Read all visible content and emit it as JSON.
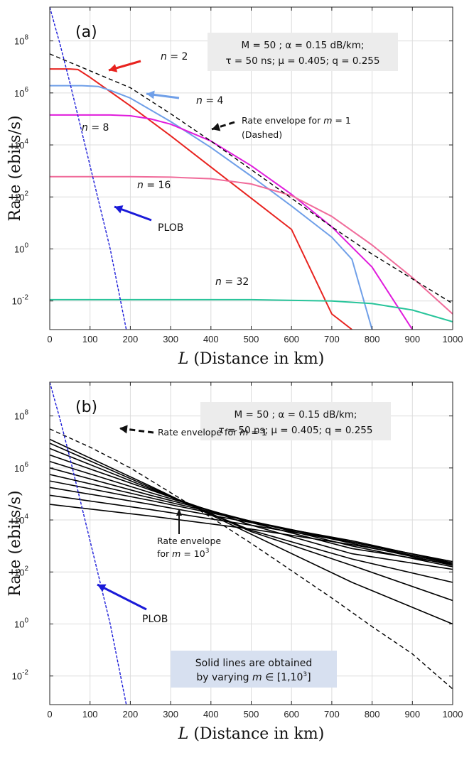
{
  "chart_data": [
    {
      "type": "line",
      "panel_label": "(a)",
      "xlabel": "L (Distance in km)",
      "xlabel_var": "L",
      "xlabel_text": "(Distance in km)",
      "ylabel": "Rate (ebits/s)",
      "xlim": [
        0,
        1000
      ],
      "ylim_log10": [
        -3.1,
        9.3
      ],
      "y_scale": "log",
      "grid": true,
      "x_ticks": [
        "0",
        "100",
        "200",
        "300",
        "400",
        "500",
        "600",
        "700",
        "800",
        "900",
        "1000"
      ],
      "y_ticks": [
        {
          "exp": "-2",
          "v": -2
        },
        {
          "exp": "0",
          "v": 0
        },
        {
          "exp": "2",
          "v": 2
        },
        {
          "exp": "4",
          "v": 4
        },
        {
          "exp": "6",
          "v": 6
        },
        {
          "exp": "8",
          "v": 8
        }
      ],
      "params": [
        "M = 50 ; α = 0.15 dB/km;",
        "τ = 50 ns; μ = 0.405; q = 0.255"
      ],
      "series": [
        {
          "label": "n = 2",
          "color": "#e8231f",
          "style": "solid",
          "x": [
            0,
            50,
            70,
            100,
            150,
            200,
            300,
            400,
            500,
            600,
            700,
            750
          ],
          "log10_y": [
            6.92,
            6.92,
            6.9,
            6.6,
            6.05,
            5.5,
            4.35,
            3.15,
            1.95,
            0.75,
            -2.5,
            -3.1
          ]
        },
        {
          "label": "n = 4",
          "color": "#6f9fe8",
          "style": "solid",
          "x": [
            0,
            80,
            120,
            150,
            200,
            300,
            400,
            500,
            600,
            700,
            750,
            800
          ],
          "log10_y": [
            6.28,
            6.28,
            6.25,
            6.1,
            5.8,
            4.9,
            3.9,
            2.8,
            1.65,
            0.45,
            -0.4,
            -3.1
          ]
        },
        {
          "label": "n = 8",
          "color": "#e01bdc",
          "style": "solid",
          "x": [
            0,
            150,
            200,
            250,
            300,
            400,
            500,
            600,
            700,
            800,
            850,
            900
          ],
          "log10_y": [
            5.15,
            5.15,
            5.12,
            5.0,
            4.8,
            4.15,
            3.2,
            2.1,
            0.85,
            -0.7,
            -1.9,
            -3.1
          ]
        },
        {
          "label": "n = 16",
          "color": "#f06b9a",
          "style": "solid",
          "x": [
            0,
            200,
            300,
            400,
            500,
            600,
            700,
            800,
            900,
            950,
            1000
          ],
          "log10_y": [
            2.78,
            2.78,
            2.76,
            2.7,
            2.5,
            2.05,
            1.25,
            0.15,
            -1.1,
            -1.8,
            -2.5
          ]
        },
        {
          "label": "n = 32",
          "color": "#27c49a",
          "style": "solid",
          "x": [
            0,
            300,
            500,
            700,
            800,
            900,
            1000
          ],
          "log10_y": [
            -1.95,
            -1.95,
            -1.95,
            -2.0,
            -2.1,
            -2.35,
            -2.8
          ]
        },
        {
          "label": "Rate envelope for m = 1 (Dashed)",
          "color": "#000000",
          "style": "dashed",
          "x": [
            0,
            100,
            200,
            300,
            400,
            500,
            600,
            700,
            800,
            900,
            1000
          ],
          "log10_y": [
            7.5,
            6.85,
            6.2,
            5.2,
            4.15,
            3.05,
            1.95,
            0.85,
            -0.2,
            -1.15,
            -2.1
          ]
        },
        {
          "label": "PLOB",
          "color": "#1a1ad8",
          "style": "dashed",
          "x": [
            0,
            25,
            50,
            100,
            150,
            190
          ],
          "log10_y": [
            9.3,
            7.9,
            6.4,
            3.2,
            0.0,
            -3.1
          ]
        }
      ],
      "annotations": [
        {
          "text": "n = 2",
          "var": "n",
          "value": "2"
        },
        {
          "text": "n = 4",
          "var": "n",
          "value": "4"
        },
        {
          "text": "n = 8",
          "var": "n",
          "value": "8"
        },
        {
          "text": "n = 16",
          "var": "n",
          "value": "16"
        },
        {
          "text": "n = 32",
          "var": "n",
          "value": "32"
        },
        {
          "text_before": "Rate envelope for",
          "var": "m",
          "after": "= 1"
        },
        {
          "text": "(Dashed)"
        },
        {
          "text": "PLOB"
        }
      ]
    },
    {
      "type": "line",
      "panel_label": "(b)",
      "xlabel": "L (Distance in km)",
      "xlabel_var": "L",
      "xlabel_text": "(Distance in km)",
      "ylabel": "Rate (ebits/s)",
      "xlim": [
        0,
        1000
      ],
      "ylim_log10": [
        -3.1,
        9.3
      ],
      "y_scale": "log",
      "grid": true,
      "x_ticks": [
        "0",
        "100",
        "200",
        "300",
        "400",
        "500",
        "600",
        "700",
        "800",
        "900",
        "1000"
      ],
      "y_ticks": [
        {
          "exp": "-2",
          "v": -2
        },
        {
          "exp": "0",
          "v": 0
        },
        {
          "exp": "2",
          "v": 2
        },
        {
          "exp": "4",
          "v": 4
        },
        {
          "exp": "6",
          "v": 6
        },
        {
          "exp": "8",
          "v": 8
        }
      ],
      "params": [
        "M = 50 ; α = 0.15 dB/km;",
        "τ = 50 ns; μ = 0.405; q = 0.255"
      ],
      "series": [
        {
          "label": "m = 1 envelope (dashed)",
          "color": "#000000",
          "style": "dashed",
          "x": [
            0,
            100,
            200,
            300,
            400,
            500,
            600,
            700,
            800,
            900,
            1000
          ],
          "log10_y": [
            7.5,
            6.8,
            6.0,
            5.05,
            4.1,
            3.1,
            2.05,
            1.0,
            -0.1,
            -1.15,
            -2.5
          ]
        },
        {
          "label": "m curve 1",
          "color": "#000000",
          "style": "solid",
          "x": [
            0,
            250,
            500,
            750,
            1000
          ],
          "log10_y": [
            7.1,
            5.3,
            3.45,
            1.6,
            0.0
          ]
        },
        {
          "label": "m curve 2",
          "color": "#000000",
          "style": "solid",
          "x": [
            0,
            250,
            500,
            750,
            1000
          ],
          "log10_y": [
            6.95,
            5.25,
            3.55,
            2.25,
            0.9
          ]
        },
        {
          "label": "m curve 3",
          "color": "#000000",
          "style": "solid",
          "x": [
            0,
            250,
            500,
            750,
            1000
          ],
          "log10_y": [
            6.75,
            5.2,
            3.6,
            2.5,
            1.6
          ]
        },
        {
          "label": "m curve 4",
          "color": "#000000",
          "style": "solid",
          "x": [
            0,
            250,
            500,
            750,
            1000
          ],
          "log10_y": [
            6.5,
            5.15,
            3.8,
            2.7,
            2.1
          ]
        },
        {
          "label": "m curve 5",
          "color": "#000000",
          "style": "solid",
          "x": [
            0,
            250,
            500,
            750,
            1000
          ],
          "log10_y": [
            6.25,
            5.05,
            3.9,
            2.9,
            2.3
          ]
        },
        {
          "label": "m curve 6",
          "color": "#000000",
          "style": "solid",
          "x": [
            0,
            250,
            500,
            750,
            1000
          ],
          "log10_y": [
            6.0,
            4.95,
            3.95,
            3.0,
            2.2
          ]
        },
        {
          "label": "m curve 7",
          "color": "#000000",
          "style": "solid",
          "x": [
            0,
            250,
            500,
            750,
            1000
          ],
          "log10_y": [
            5.75,
            4.85,
            3.95,
            3.1,
            2.25
          ]
        },
        {
          "label": "m curve 8",
          "color": "#000000",
          "style": "solid",
          "x": [
            0,
            250,
            500,
            750,
            1000
          ],
          "log10_y": [
            5.5,
            4.75,
            3.95,
            3.15,
            2.3
          ]
        },
        {
          "label": "m curve 9",
          "color": "#000000",
          "style": "solid",
          "x": [
            0,
            250,
            500,
            750,
            1000
          ],
          "log10_y": [
            5.25,
            4.6,
            3.9,
            3.2,
            2.35
          ]
        },
        {
          "label": "m curve 10",
          "color": "#000000",
          "style": "solid",
          "x": [
            0,
            250,
            500,
            750,
            1000
          ],
          "log10_y": [
            4.95,
            4.4,
            3.8,
            3.15,
            2.4
          ]
        },
        {
          "label": "m curve 11",
          "color": "#000000",
          "style": "solid",
          "x": [
            0,
            250,
            500,
            750,
            1000
          ],
          "log10_y": [
            4.6,
            4.15,
            3.65,
            3.05,
            2.35
          ]
        },
        {
          "label": "PLOB",
          "color": "#1a1ad8",
          "style": "dashed",
          "x": [
            0,
            25,
            50,
            100,
            150,
            190
          ],
          "log10_y": [
            9.3,
            7.9,
            6.4,
            3.2,
            0.0,
            -3.1
          ]
        }
      ],
      "annotations": [
        {
          "text_before": "Rate envelope for",
          "var": "m",
          "after": "= 1"
        },
        {
          "text": "Rate envelope"
        },
        {
          "text_before": "for",
          "var": "m",
          "after": "= 10",
          "sup": "3"
        },
        {
          "text": "PLOB"
        },
        {
          "text": "Solid lines are obtained"
        },
        {
          "text_before": "by varying",
          "var": "m",
          "after": "∈ [1,10",
          "sup": "3",
          "close": "]"
        }
      ]
    }
  ]
}
